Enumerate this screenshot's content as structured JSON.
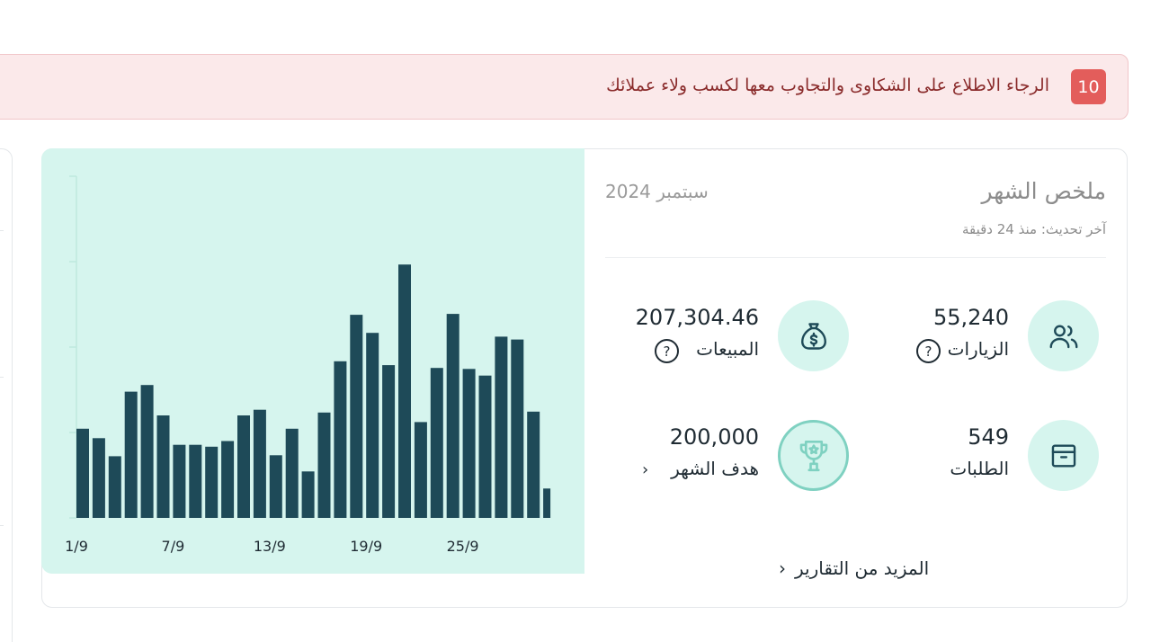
{
  "alert": {
    "count": "10",
    "message": "الرجاء الاطلاع على الشكاوى والتجاوب معها لكسب ولاء عملائك"
  },
  "summary": {
    "title": "ملخص الشهر",
    "month": "سبتمبر 2024",
    "updated": "آخر تحديث: منذ 24 دقيقة",
    "visits": {
      "value": "55,240",
      "label": "الزيارات",
      "icon": "users-icon"
    },
    "sales": {
      "value": "207,304.46",
      "label": "المبيعات",
      "icon": "money-bag-icon"
    },
    "orders": {
      "value": "549",
      "label": "الطلبات",
      "icon": "box-icon"
    },
    "goal": {
      "value": "200,000",
      "label": "هدف الشهر",
      "icon": "trophy-icon"
    },
    "more_reports": "المزيد من التقارير"
  },
  "colors": {
    "accent": "#d6f5ee",
    "bar": "#1e4a58",
    "alert_bg": "#fbe9ea",
    "badge": "#e35d5b"
  },
  "chart_data": {
    "type": "bar",
    "x_tick_labels": [
      "1/9",
      "7/9",
      "13/9",
      "19/9",
      "25/9"
    ],
    "categories": [
      "1/9",
      "2/9",
      "3/9",
      "4/9",
      "5/9",
      "6/9",
      "7/9",
      "8/9",
      "9/9",
      "10/9",
      "11/9",
      "12/9",
      "13/9",
      "14/9",
      "15/9",
      "16/9",
      "17/9",
      "18/9",
      "19/9",
      "20/9",
      "21/9",
      "22/9",
      "23/9",
      "24/9",
      "25/9",
      "26/9",
      "27/9",
      "28/9",
      "29/9",
      "30/9"
    ],
    "values": [
      94,
      84,
      65,
      133,
      140,
      108,
      77,
      77,
      75,
      81,
      108,
      114,
      66,
      94,
      49,
      111,
      165,
      214,
      195,
      161,
      267,
      101,
      158,
      215,
      157,
      150,
      191,
      188,
      112,
      31
    ],
    "ylim": [
      0,
      360
    ],
    "grid": false
  }
}
